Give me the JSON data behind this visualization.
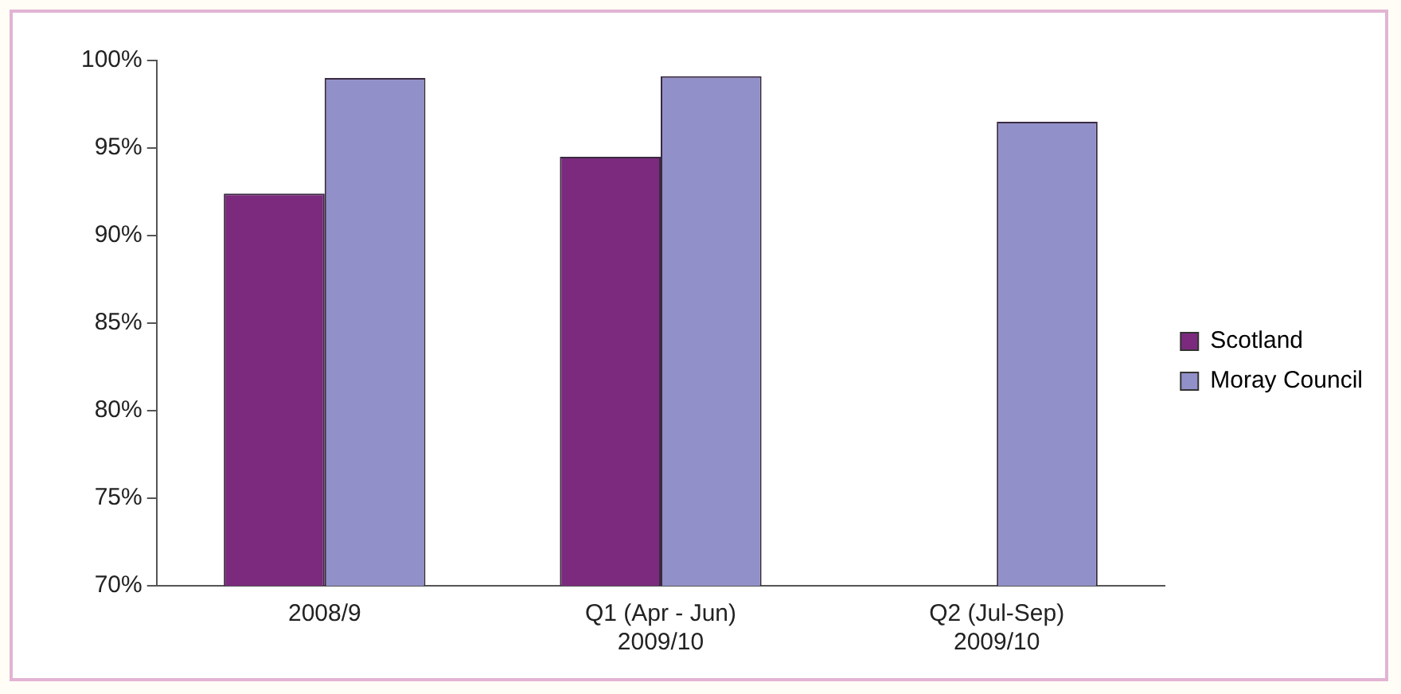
{
  "chart_data": {
    "type": "bar",
    "categories": [
      "2008/9",
      "Q1 (Apr - Jun)\n2009/10",
      "Q2 (Jul-Sep)\n2009/10"
    ],
    "series": [
      {
        "name": "Scotland",
        "color": "#7b2a7d",
        "values": [
          92.4,
          94.5,
          null
        ]
      },
      {
        "name": "Moray Council",
        "color": "#9290c8",
        "values": [
          99.0,
          99.1,
          96.5
        ]
      }
    ],
    "ylim": [
      70,
      100
    ],
    "yticks": [
      {
        "value": 70,
        "label": "70%"
      },
      {
        "value": 75,
        "label": "75%"
      },
      {
        "value": 80,
        "label": "80%"
      },
      {
        "value": 85,
        "label": "85%"
      },
      {
        "value": 90,
        "label": "90%"
      },
      {
        "value": 95,
        "label": "95%"
      },
      {
        "value": 100,
        "label": "100%"
      }
    ],
    "grid": false,
    "legend": "right"
  }
}
